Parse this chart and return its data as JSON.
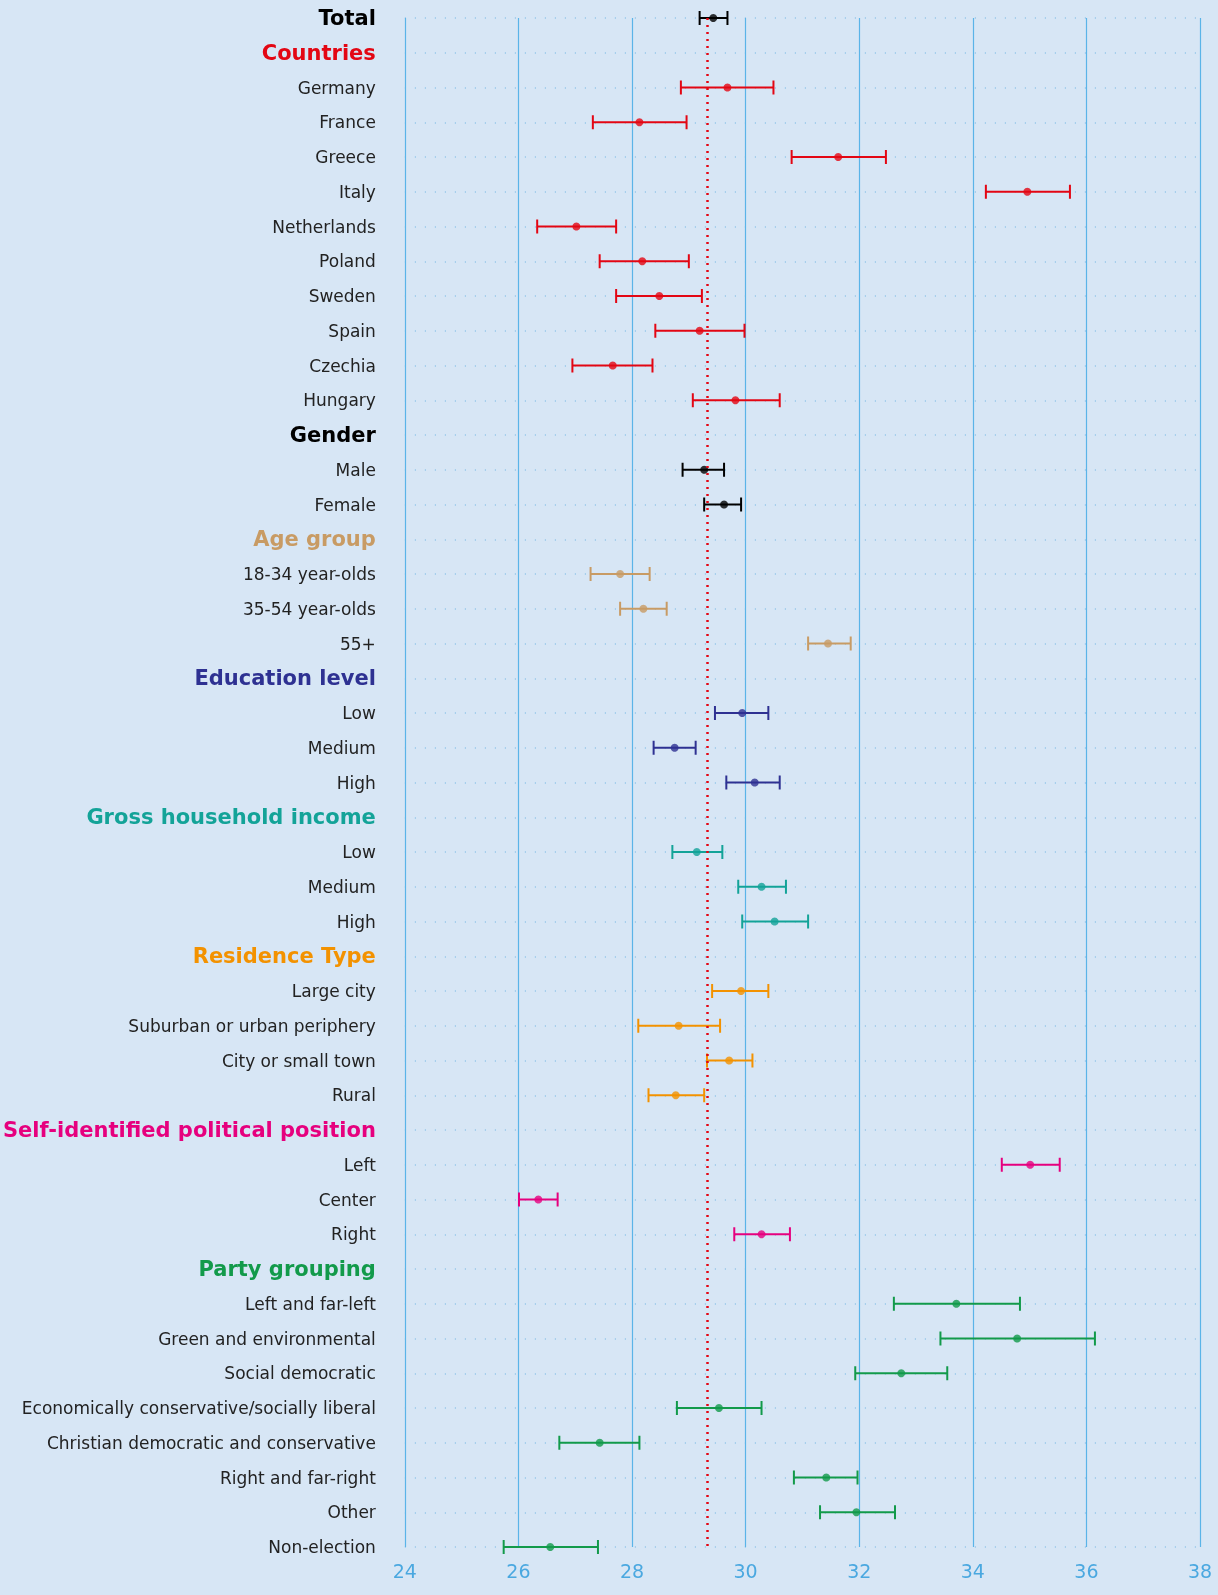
{
  "chart_data": {
    "type": "scatter",
    "orientation": "horizontal",
    "marker": "circle",
    "grid": true,
    "categories": [
      "Total",
      null,
      "Germany",
      "France",
      "Greece",
      "Italy",
      "Netherlands",
      "Poland",
      "Sweden",
      "Spain",
      "Czechia",
      "Hungary",
      "Gender",
      "Male",
      "Female",
      null,
      "18-34 year-olds",
      "35-54 year-olds",
      "55+",
      null,
      "Low",
      "Medium",
      "High",
      null,
      "Low",
      "Medium",
      "High",
      null,
      "Large city",
      "Suburban or urban periphery",
      "City or small town",
      "Rural",
      null,
      "Left",
      "Center",
      "Right",
      null,
      "Left and far-left",
      "Green and environmental",
      "Social democratic",
      "Economically conservative/socially liberal",
      "Christian democratic and conservative",
      "Right and far-right",
      "Other",
      "Non-election"
    ],
    "xlim": [
      24,
      38
    ],
    "xticks": [
      24,
      26,
      28,
      30,
      32,
      34,
      36,
      38
    ],
    "ref_lines": [
      {
        "axis": "x",
        "value": 29.32,
        "color": "#e30613",
        "line_style": "dotted"
      }
    ],
    "series": [
      {
        "color": "#000000",
        "values": [
          29.43,
          null,
          null,
          null,
          null,
          null,
          null,
          null,
          null,
          null,
          null,
          null,
          null,
          null,
          null,
          null,
          null,
          null,
          null,
          null,
          null,
          null,
          null,
          null,
          null,
          null,
          null,
          null,
          null,
          null,
          null,
          null,
          null,
          null,
          null,
          null,
          null,
          null,
          null,
          null,
          null,
          null,
          null,
          null,
          null
        ],
        "errors": [
          [
            29.19,
            29.68
          ],
          null,
          null,
          null,
          null,
          null,
          null,
          null,
          null,
          null,
          null,
          null,
          null,
          null,
          null,
          null,
          null,
          null,
          null,
          null,
          null,
          null,
          null,
          null,
          null,
          null,
          null,
          null,
          null,
          null,
          null,
          null,
          null,
          null,
          null,
          null,
          null,
          null,
          null,
          null,
          null,
          null,
          null,
          null,
          null
        ]
      },
      {
        "name": "Countries",
        "color": "#e30613",
        "values": [
          null,
          null,
          29.68,
          28.13,
          31.63,
          34.96,
          27.02,
          28.18,
          28.48,
          29.19,
          27.66,
          29.82,
          null,
          null,
          null,
          null,
          null,
          null,
          null,
          null,
          null,
          null,
          null,
          null,
          null,
          null,
          null,
          null,
          null,
          null,
          null,
          null,
          null,
          null,
          null,
          null,
          null,
          null,
          null,
          null,
          null,
          null,
          null,
          null,
          null
        ],
        "errors": [
          null,
          null,
          [
            28.86,
            30.49
          ],
          [
            27.31,
            28.96
          ],
          [
            30.81,
            32.47
          ],
          [
            34.23,
            35.71
          ],
          [
            26.33,
            27.72
          ],
          [
            27.43,
            29.0
          ],
          [
            27.72,
            29.23
          ],
          [
            28.41,
            29.98
          ],
          [
            26.95,
            28.36
          ],
          [
            29.07,
            30.6
          ],
          null,
          null,
          null,
          null,
          null,
          null,
          null,
          null,
          null,
          null,
          null,
          null,
          null,
          null,
          null,
          null,
          null,
          null,
          null,
          null,
          null,
          null,
          null,
          null,
          null,
          null,
          null,
          null,
          null,
          null,
          null,
          null,
          null
        ]
      },
      {
        "color": "#000000",
        "values": [
          null,
          null,
          null,
          null,
          null,
          null,
          null,
          null,
          null,
          null,
          null,
          null,
          null,
          29.27,
          29.62,
          null,
          null,
          null,
          null,
          null,
          null,
          null,
          null,
          null,
          null,
          null,
          null,
          null,
          null,
          null,
          null,
          null,
          null,
          null,
          null,
          null,
          null,
          null,
          null,
          null,
          null,
          null,
          null,
          null,
          null
        ],
        "errors": [
          null,
          null,
          null,
          null,
          null,
          null,
          null,
          null,
          null,
          null,
          null,
          null,
          null,
          [
            28.89,
            29.62
          ],
          [
            29.27,
            29.92
          ],
          null,
          null,
          null,
          null,
          null,
          null,
          null,
          null,
          null,
          null,
          null,
          null,
          null,
          null,
          null,
          null,
          null,
          null,
          null,
          null,
          null,
          null,
          null,
          null,
          null,
          null,
          null,
          null,
          null,
          null
        ]
      },
      {
        "name": "Age group",
        "color": "#c89b64",
        "values": [
          null,
          null,
          null,
          null,
          null,
          null,
          null,
          null,
          null,
          null,
          null,
          null,
          null,
          null,
          null,
          null,
          27.79,
          28.2,
          31.45,
          null,
          null,
          null,
          null,
          null,
          null,
          null,
          null,
          null,
          null,
          null,
          null,
          null,
          null,
          null,
          null,
          null,
          null,
          null,
          null,
          null,
          null,
          null,
          null,
          null,
          null
        ],
        "errors": [
          null,
          null,
          null,
          null,
          null,
          null,
          null,
          null,
          null,
          null,
          null,
          null,
          null,
          null,
          null,
          null,
          [
            27.27,
            28.31
          ],
          [
            27.79,
            28.61
          ],
          [
            31.1,
            31.85
          ],
          null,
          null,
          null,
          null,
          null,
          null,
          null,
          null,
          null,
          null,
          null,
          null,
          null,
          null,
          null,
          null,
          null,
          null,
          null,
          null,
          null,
          null,
          null,
          null,
          null,
          null
        ]
      },
      {
        "name": "Education level",
        "color": "#2e3192",
        "values": [
          null,
          null,
          null,
          null,
          null,
          null,
          null,
          null,
          null,
          null,
          null,
          null,
          null,
          null,
          null,
          null,
          null,
          null,
          null,
          null,
          29.94,
          28.75,
          30.16,
          null,
          null,
          null,
          null,
          null,
          null,
          null,
          null,
          null,
          null,
          null,
          null,
          null,
          null,
          null,
          null,
          null,
          null,
          null,
          null,
          null,
          null
        ],
        "errors": [
          null,
          null,
          null,
          null,
          null,
          null,
          null,
          null,
          null,
          null,
          null,
          null,
          null,
          null,
          null,
          null,
          null,
          null,
          null,
          null,
          [
            29.46,
            30.4
          ],
          [
            28.38,
            29.12
          ],
          [
            29.66,
            30.6
          ],
          null,
          null,
          null,
          null,
          null,
          null,
          null,
          null,
          null,
          null,
          null,
          null,
          null,
          null,
          null,
          null,
          null,
          null,
          null,
          null,
          null,
          null
        ]
      },
      {
        "name": "Gross household income",
        "color": "#13a398",
        "values": [
          null,
          null,
          null,
          null,
          null,
          null,
          null,
          null,
          null,
          null,
          null,
          null,
          null,
          null,
          null,
          null,
          null,
          null,
          null,
          null,
          null,
          null,
          null,
          null,
          29.14,
          30.28,
          30.51,
          null,
          null,
          null,
          null,
          null,
          null,
          null,
          null,
          null,
          null,
          null,
          null,
          null,
          null,
          null,
          null,
          null,
          null
        ],
        "errors": [
          null,
          null,
          null,
          null,
          null,
          null,
          null,
          null,
          null,
          null,
          null,
          null,
          null,
          null,
          null,
          null,
          null,
          null,
          null,
          null,
          null,
          null,
          null,
          null,
          [
            28.71,
            29.59
          ],
          [
            29.87,
            30.71
          ],
          [
            29.94,
            31.1
          ],
          null,
          null,
          null,
          null,
          null,
          null,
          null,
          null,
          null,
          null,
          null,
          null,
          null,
          null,
          null,
          null,
          null,
          null
        ]
      },
      {
        "name": "Residence Type",
        "color": "#f39200",
        "values": [
          null,
          null,
          null,
          null,
          null,
          null,
          null,
          null,
          null,
          null,
          null,
          null,
          null,
          null,
          null,
          null,
          null,
          null,
          null,
          null,
          null,
          null,
          null,
          null,
          null,
          null,
          null,
          null,
          29.92,
          28.82,
          29.71,
          28.77,
          null,
          null,
          null,
          null,
          null,
          null,
          null,
          null,
          null,
          null,
          null,
          null,
          null
        ],
        "errors": [
          null,
          null,
          null,
          null,
          null,
          null,
          null,
          null,
          null,
          null,
          null,
          null,
          null,
          null,
          null,
          null,
          null,
          null,
          null,
          null,
          null,
          null,
          null,
          null,
          null,
          null,
          null,
          null,
          [
            29.41,
            30.4
          ],
          [
            28.11,
            29.55
          ],
          [
            29.32,
            30.12
          ],
          [
            28.29,
            29.27
          ],
          null,
          null,
          null,
          null,
          null,
          null,
          null,
          null,
          null,
          null,
          null,
          null,
          null
        ]
      },
      {
        "name": "Self-identified political position",
        "color": "#e6007e",
        "values": [
          null,
          null,
          null,
          null,
          null,
          null,
          null,
          null,
          null,
          null,
          null,
          null,
          null,
          null,
          null,
          null,
          null,
          null,
          null,
          null,
          null,
          null,
          null,
          null,
          null,
          null,
          null,
          null,
          null,
          null,
          null,
          null,
          null,
          35.01,
          26.35,
          30.28,
          null,
          null,
          null,
          null,
          null,
          null,
          null,
          null,
          null
        ],
        "errors": [
          null,
          null,
          null,
          null,
          null,
          null,
          null,
          null,
          null,
          null,
          null,
          null,
          null,
          null,
          null,
          null,
          null,
          null,
          null,
          null,
          null,
          null,
          null,
          null,
          null,
          null,
          null,
          null,
          null,
          null,
          null,
          null,
          null,
          [
            34.51,
            35.53
          ],
          [
            26.01,
            26.69
          ],
          [
            29.8,
            30.78
          ],
          null,
          null,
          null,
          null,
          null,
          null,
          null,
          null,
          null
        ]
      },
      {
        "name": "Party grouping",
        "color": "#129a4a",
        "values": [
          null,
          null,
          null,
          null,
          null,
          null,
          null,
          null,
          null,
          null,
          null,
          null,
          null,
          null,
          null,
          null,
          null,
          null,
          null,
          null,
          null,
          null,
          null,
          null,
          null,
          null,
          null,
          null,
          null,
          null,
          null,
          null,
          null,
          null,
          null,
          null,
          null,
          33.71,
          34.78,
          32.74,
          29.53,
          27.43,
          31.42,
          31.95,
          26.56
        ],
        "errors": [
          null,
          null,
          null,
          null,
          null,
          null,
          null,
          null,
          null,
          null,
          null,
          null,
          null,
          null,
          null,
          null,
          null,
          null,
          null,
          null,
          null,
          null,
          null,
          null,
          null,
          null,
          null,
          null,
          null,
          null,
          null,
          null,
          null,
          null,
          null,
          null,
          null,
          [
            32.61,
            34.83
          ],
          [
            33.43,
            36.15
          ],
          [
            31.93,
            33.55
          ],
          [
            28.79,
            30.28
          ],
          [
            26.72,
            28.13
          ],
          [
            30.85,
            31.97
          ],
          [
            31.31,
            32.63
          ],
          [
            25.74,
            27.4
          ]
        ]
      }
    ]
  }
}
